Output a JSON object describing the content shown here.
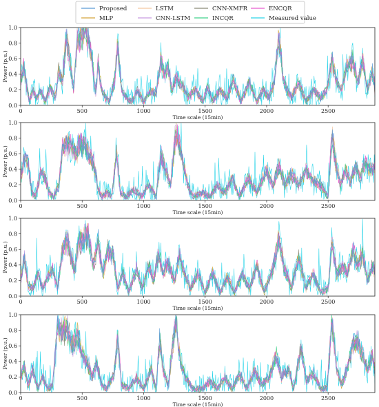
{
  "legend": [
    {
      "label": "Proposed",
      "color": "#5b9bd5"
    },
    {
      "label": "MLP",
      "color": "#d4a53a"
    },
    {
      "label": "LSTM",
      "color": "#f4c6a0"
    },
    {
      "label": "CNN-LSTM",
      "color": "#c79be0"
    },
    {
      "label": "CNN-XMFR",
      "color": "#8a8a78"
    },
    {
      "label": "INCQR",
      "color": "#3fd18a"
    },
    {
      "label": "ENCQR",
      "color": "#e85ccf"
    },
    {
      "label": "Measured value",
      "color": "#2ad4e8"
    }
  ],
  "chart_data": [
    {
      "type": "line",
      "xlabel": "Time scale (15min)",
      "ylabel": "Power (p.u.)",
      "xlim": [
        0,
        2880
      ],
      "ylim": [
        0,
        1.0
      ],
      "xticks": [
        0,
        500,
        1000,
        1500,
        2000,
        2500
      ],
      "yticks": [
        0.0,
        0.2,
        0.4,
        0.6,
        0.8,
        1.0
      ],
      "profile": [
        [
          0,
          0.3
        ],
        [
          25,
          0.5
        ],
        [
          50,
          0.25
        ],
        [
          70,
          0.05
        ],
        [
          100,
          0.2
        ],
        [
          130,
          0.1
        ],
        [
          160,
          0.2
        ],
        [
          200,
          0.05
        ],
        [
          240,
          0.25
        ],
        [
          280,
          0.1
        ],
        [
          310,
          0.45
        ],
        [
          340,
          0.3
        ],
        [
          370,
          0.9
        ],
        [
          400,
          0.6
        ],
        [
          430,
          0.2
        ],
        [
          460,
          0.85
        ],
        [
          490,
          0.9
        ],
        [
          520,
          0.95
        ],
        [
          550,
          0.9
        ],
        [
          580,
          0.6
        ],
        [
          610,
          0.15
        ],
        [
          630,
          0.55
        ],
        [
          660,
          0.2
        ],
        [
          690,
          0.1
        ],
        [
          720,
          0.05
        ],
        [
          760,
          0.3
        ],
        [
          790,
          0.8
        ],
        [
          820,
          0.2
        ],
        [
          860,
          0.1
        ],
        [
          900,
          0.05
        ],
        [
          950,
          0.2
        ],
        [
          1000,
          0.05
        ],
        [
          1060,
          0.2
        ],
        [
          1100,
          0.15
        ],
        [
          1140,
          0.6
        ],
        [
          1170,
          0.4
        ],
        [
          1200,
          0.5
        ],
        [
          1230,
          0.2
        ],
        [
          1260,
          0.35
        ],
        [
          1290,
          0.3
        ],
        [
          1320,
          0.25
        ],
        [
          1360,
          0.1
        ],
        [
          1420,
          0.2
        ],
        [
          1480,
          0.05
        ],
        [
          1520,
          0.25
        ],
        [
          1560,
          0.05
        ],
        [
          1620,
          0.2
        ],
        [
          1680,
          0.1
        ],
        [
          1730,
          0.35
        ],
        [
          1790,
          0.05
        ],
        [
          1860,
          0.3
        ],
        [
          1920,
          0.05
        ],
        [
          1970,
          0.2
        ],
        [
          2020,
          0.1
        ],
        [
          2060,
          0.3
        ],
        [
          2100,
          0.9
        ],
        [
          2140,
          0.3
        ],
        [
          2200,
          0.1
        ],
        [
          2260,
          0.3
        ],
        [
          2320,
          0.05
        ],
        [
          2380,
          0.2
        ],
        [
          2440,
          0.1
        ],
        [
          2490,
          0.2
        ],
        [
          2530,
          0.6
        ],
        [
          2570,
          0.3
        ],
        [
          2610,
          0.2
        ],
        [
          2650,
          0.5
        ],
        [
          2700,
          0.6
        ],
        [
          2740,
          0.3
        ],
        [
          2780,
          0.6
        ],
        [
          2820,
          0.2
        ],
        [
          2860,
          0.45
        ],
        [
          2880,
          0.2
        ]
      ]
    },
    {
      "type": "line",
      "xlabel": "Time scale (15min)",
      "ylabel": "Power (p.u.)",
      "xlim": [
        0,
        2880
      ],
      "ylim": [
        0,
        1.0
      ],
      "xticks": [
        0,
        500,
        1000,
        1500,
        2000,
        2500
      ],
      "yticks": [
        0.0,
        0.2,
        0.4,
        0.6,
        0.8,
        1.0
      ],
      "profile": [
        [
          0,
          0.3
        ],
        [
          30,
          0.55
        ],
        [
          60,
          0.5
        ],
        [
          90,
          0.1
        ],
        [
          120,
          0.05
        ],
        [
          160,
          0.35
        ],
        [
          200,
          0.3
        ],
        [
          230,
          0.1
        ],
        [
          270,
          0.05
        ],
        [
          310,
          0.2
        ],
        [
          340,
          0.7
        ],
        [
          380,
          0.75
        ],
        [
          420,
          0.7
        ],
        [
          450,
          0.6
        ],
        [
          480,
          0.75
        ],
        [
          520,
          0.75
        ],
        [
          560,
          0.6
        ],
        [
          600,
          0.45
        ],
        [
          630,
          0.15
        ],
        [
          660,
          0.05
        ],
        [
          700,
          0.1
        ],
        [
          740,
          0.05
        ],
        [
          780,
          0.6
        ],
        [
          810,
          0.1
        ],
        [
          860,
          0.05
        ],
        [
          920,
          0.15
        ],
        [
          980,
          0.05
        ],
        [
          1040,
          0.2
        ],
        [
          1100,
          0.05
        ],
        [
          1140,
          0.6
        ],
        [
          1180,
          0.4
        ],
        [
          1220,
          0.2
        ],
        [
          1260,
          0.9
        ],
        [
          1300,
          0.7
        ],
        [
          1330,
          0.4
        ],
        [
          1360,
          0.2
        ],
        [
          1400,
          0.05
        ],
        [
          1480,
          0.1
        ],
        [
          1540,
          0.05
        ],
        [
          1600,
          0.2
        ],
        [
          1660,
          0.1
        ],
        [
          1720,
          0.3
        ],
        [
          1780,
          0.05
        ],
        [
          1850,
          0.3
        ],
        [
          1920,
          0.1
        ],
        [
          2000,
          0.4
        ],
        [
          2050,
          0.2
        ],
        [
          2100,
          0.45
        ],
        [
          2150,
          0.2
        ],
        [
          2200,
          0.35
        ],
        [
          2260,
          0.2
        ],
        [
          2320,
          0.4
        ],
        [
          2380,
          0.25
        ],
        [
          2440,
          0.2
        ],
        [
          2500,
          0.05
        ],
        [
          2530,
          0.85
        ],
        [
          2560,
          0.5
        ],
        [
          2600,
          0.2
        ],
        [
          2640,
          0.4
        ],
        [
          2680,
          0.25
        ],
        [
          2720,
          0.45
        ],
        [
          2760,
          0.3
        ],
        [
          2800,
          0.5
        ],
        [
          2840,
          0.4
        ],
        [
          2880,
          0.45
        ]
      ]
    },
    {
      "type": "line",
      "xlabel": "Time scale (15min)",
      "ylabel": "Power (p.u.)",
      "xlim": [
        0,
        2880
      ],
      "ylim": [
        0,
        1.0
      ],
      "xticks": [
        0,
        500,
        1000,
        1500,
        2000,
        2500
      ],
      "yticks": [
        0.0,
        0.2,
        0.4,
        0.6,
        0.8,
        1.0
      ],
      "profile": [
        [
          0,
          0.2
        ],
        [
          30,
          0.5
        ],
        [
          60,
          0.15
        ],
        [
          100,
          0.1
        ],
        [
          140,
          0.3
        ],
        [
          180,
          0.1
        ],
        [
          220,
          0.25
        ],
        [
          260,
          0.35
        ],
        [
          300,
          0.1
        ],
        [
          340,
          0.6
        ],
        [
          380,
          0.75
        ],
        [
          410,
          0.5
        ],
        [
          440,
          0.35
        ],
        [
          470,
          0.7
        ],
        [
          510,
          0.75
        ],
        [
          550,
          0.8
        ],
        [
          590,
          0.4
        ],
        [
          630,
          0.7
        ],
        [
          670,
          0.3
        ],
        [
          710,
          0.6
        ],
        [
          750,
          0.55
        ],
        [
          790,
          0.1
        ],
        [
          830,
          0.3
        ],
        [
          880,
          0.05
        ],
        [
          940,
          0.35
        ],
        [
          990,
          0.1
        ],
        [
          1040,
          0.4
        ],
        [
          1080,
          0.2
        ],
        [
          1120,
          0.55
        ],
        [
          1160,
          0.3
        ],
        [
          1200,
          0.45
        ],
        [
          1250,
          0.2
        ],
        [
          1290,
          0.55
        ],
        [
          1330,
          0.3
        ],
        [
          1380,
          0.1
        ],
        [
          1440,
          0.3
        ],
        [
          1500,
          0.05
        ],
        [
          1560,
          0.3
        ],
        [
          1620,
          0.05
        ],
        [
          1680,
          0.25
        ],
        [
          1740,
          0.05
        ],
        [
          1800,
          0.3
        ],
        [
          1860,
          0.1
        ],
        [
          1920,
          0.4
        ],
        [
          1980,
          0.05
        ],
        [
          2040,
          0.3
        ],
        [
          2100,
          0.75
        ],
        [
          2140,
          0.4
        ],
        [
          2200,
          0.1
        ],
        [
          2260,
          0.5
        ],
        [
          2320,
          0.1
        ],
        [
          2380,
          0.3
        ],
        [
          2440,
          0.05
        ],
        [
          2500,
          0.1
        ],
        [
          2530,
          0.7
        ],
        [
          2570,
          0.3
        ],
        [
          2620,
          0.4
        ],
        [
          2660,
          0.3
        ],
        [
          2700,
          0.6
        ],
        [
          2740,
          0.4
        ],
        [
          2780,
          0.55
        ],
        [
          2820,
          0.2
        ],
        [
          2860,
          0.4
        ],
        [
          2880,
          0.3
        ]
      ]
    },
    {
      "type": "line",
      "xlabel": "Time scale (15min)",
      "ylabel": "Power (p.u.)",
      "xlim": [
        0,
        2880
      ],
      "ylim": [
        0,
        1.0
      ],
      "xticks": [
        0,
        500,
        1000,
        1500,
        2000,
        2500
      ],
      "yticks": [
        0.0,
        0.2,
        0.4,
        0.6,
        0.8,
        1.0
      ],
      "profile": [
        [
          0,
          0.2
        ],
        [
          30,
          0.35
        ],
        [
          60,
          0.1
        ],
        [
          100,
          0.3
        ],
        [
          140,
          0.05
        ],
        [
          180,
          0.2
        ],
        [
          220,
          0.05
        ],
        [
          260,
          0.1
        ],
        [
          300,
          0.85
        ],
        [
          340,
          0.8
        ],
        [
          380,
          0.85
        ],
        [
          420,
          0.6
        ],
        [
          460,
          0.75
        ],
        [
          500,
          0.5
        ],
        [
          540,
          0.4
        ],
        [
          580,
          0.2
        ],
        [
          620,
          0.4
        ],
        [
          660,
          0.1
        ],
        [
          700,
          0.05
        ],
        [
          760,
          0.25
        ],
        [
          790,
          0.7
        ],
        [
          820,
          0.1
        ],
        [
          880,
          0.05
        ],
        [
          940,
          0.2
        ],
        [
          1000,
          0.05
        ],
        [
          1060,
          0.3
        ],
        [
          1100,
          0.05
        ],
        [
          1130,
          0.7
        ],
        [
          1160,
          0.3
        ],
        [
          1200,
          0.1
        ],
        [
          1260,
          0.95
        ],
        [
          1300,
          0.4
        ],
        [
          1340,
          0.2
        ],
        [
          1400,
          0.05
        ],
        [
          1480,
          0.05
        ],
        [
          1540,
          0.15
        ],
        [
          1600,
          0.05
        ],
        [
          1660,
          0.2
        ],
        [
          1720,
          0.05
        ],
        [
          1780,
          0.25
        ],
        [
          1840,
          0.05
        ],
        [
          1900,
          0.3
        ],
        [
          1960,
          0.1
        ],
        [
          2020,
          0.2
        ],
        [
          2080,
          0.5
        ],
        [
          2120,
          0.2
        ],
        [
          2180,
          0.3
        ],
        [
          2220,
          0.05
        ],
        [
          2280,
          0.6
        ],
        [
          2320,
          0.15
        ],
        [
          2380,
          0.25
        ],
        [
          2440,
          0.05
        ],
        [
          2490,
          0.05
        ],
        [
          2530,
          0.95
        ],
        [
          2570,
          0.3
        ],
        [
          2610,
          0.1
        ],
        [
          2650,
          0.3
        ],
        [
          2700,
          0.6
        ],
        [
          2740,
          0.7
        ],
        [
          2780,
          0.5
        ],
        [
          2820,
          0.3
        ],
        [
          2860,
          0.5
        ],
        [
          2880,
          0.3
        ]
      ]
    }
  ]
}
